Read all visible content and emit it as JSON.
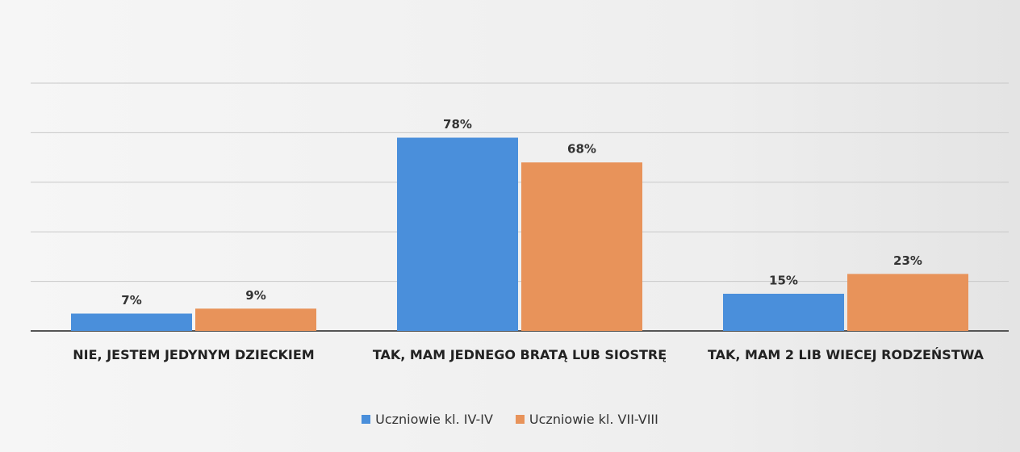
{
  "chart_data": {
    "type": "bar",
    "categories": [
      "NIE, JESTEM JEDYNYM DZIECKIEM",
      "TAK, MAM JEDNEGO BRATĄ LUB SIOSTRĘ",
      "TAK, MAM 2 LIB WIECEJ RODZEŃSTWA"
    ],
    "series": [
      {
        "name": "Uczniowie kl. IV-IV",
        "color": "#4a8fdb",
        "values": [
          7,
          78,
          15
        ],
        "value_labels": [
          "7%",
          "78%",
          "15%"
        ]
      },
      {
        "name": "Uczniowie kl. VII-VIII",
        "color": "#e8935a",
        "values": [
          9,
          68,
          23
        ],
        "value_labels": [
          "9%",
          "68%",
          "23%"
        ]
      }
    ],
    "ylim": [
      0,
      100
    ],
    "yticks": [
      0,
      20,
      40,
      60,
      80,
      100
    ],
    "grid": true,
    "legend": "bottom"
  }
}
